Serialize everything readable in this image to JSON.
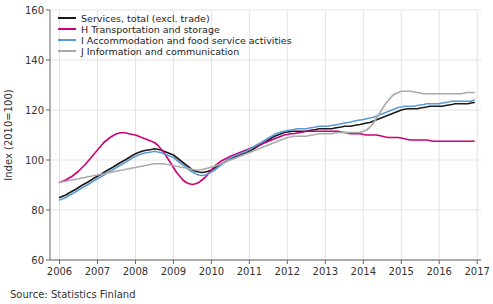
{
  "chart_data": {
    "type": "line",
    "ylabel": "Index (2010=100)",
    "source": "Source: Statistics Finland",
    "xlim": [
      2005.75,
      2017.1
    ],
    "ylim": [
      60,
      160
    ],
    "xticks": [
      2006,
      2007,
      2008,
      2009,
      2010,
      2011,
      2012,
      2013,
      2014,
      2015,
      2016,
      2017
    ],
    "yticks": [
      60,
      80,
      100,
      120,
      140,
      160
    ],
    "grid": true,
    "legend": "upper left",
    "x": [
      2006.0,
      2006.0834,
      2006.1667,
      2006.2501,
      2006.3334,
      2006.4168,
      2006.5002,
      2006.5835,
      2006.6669,
      2006.7502,
      2006.8336,
      2006.9169,
      2007.0003,
      2007.0837,
      2007.167,
      2007.2504,
      2007.3337,
      2007.4171,
      2007.5005,
      2007.5838,
      2007.6672,
      2007.7505,
      2007.8339,
      2007.9173,
      2008.0006,
      2008.084,
      2008.1673,
      2008.2507,
      2008.334,
      2008.4174,
      2008.5008,
      2008.5841,
      2008.6675,
      2008.7508,
      2008.8342,
      2008.9176,
      2009.0009,
      2009.0843,
      2009.1676,
      2009.251,
      2009.3344,
      2009.4177,
      2009.5011,
      2009.5844,
      2009.6678,
      2009.7511,
      2009.8345,
      2009.9179,
      2010.0012,
      2010.0846,
      2010.1679,
      2010.2513,
      2010.3347,
      2010.418,
      2010.5014,
      2010.5847,
      2010.6681,
      2010.7515,
      2010.8348,
      2010.9182,
      2011.0015,
      2011.0849,
      2011.1682,
      2011.2516,
      2011.335,
      2011.4183,
      2011.5017,
      2011.585,
      2011.6684,
      2011.7518,
      2011.8351,
      2011.9185,
      2012.0018,
      2012.0852,
      2012.1685,
      2012.2519,
      2012.3353,
      2012.4186,
      2012.502,
      2012.5853,
      2012.6687,
      2012.7521,
      2012.8354,
      2012.9188,
      2013.0021,
      2013.0855,
      2013.1689,
      2013.2522,
      2013.3356,
      2013.4189,
      2013.5023,
      2013.5856,
      2013.669,
      2013.7524,
      2013.8357,
      2013.9191,
      2014.0024,
      2014.0858,
      2014.1692,
      2014.2525,
      2014.3359,
      2014.4192,
      2014.5026,
      2014.586,
      2014.6693,
      2014.7527,
      2014.836,
      2014.9194,
      2015.0027,
      2015.0861,
      2015.1695,
      2015.2528,
      2015.3362,
      2015.4195,
      2015.5029,
      2015.5863,
      2015.6696,
      2015.753,
      2015.8363,
      2015.9197,
      2016.0031,
      2016.0864,
      2016.1698,
      2016.2531,
      2016.3365,
      2016.4198,
      2016.5032,
      2016.5866,
      2016.6699,
      2016.7533,
      2016.8366,
      2016.92
    ],
    "series": [
      {
        "name": "Services, total (excl. trade)",
        "color": "#1a1a1a",
        "values": [
          85.0,
          85.5,
          86.0,
          86.8,
          87.5,
          88.2,
          89.0,
          89.8,
          90.5,
          91.2,
          92.0,
          92.8,
          93.5,
          94.2,
          95.0,
          95.8,
          96.5,
          97.2,
          98.0,
          98.8,
          99.5,
          100.2,
          101.0,
          101.8,
          102.5,
          103.0,
          103.5,
          103.8,
          104.0,
          104.2,
          104.5,
          104.3,
          104.0,
          103.5,
          103.0,
          102.5,
          102.0,
          101.0,
          100.0,
          99.0,
          98.0,
          97.0,
          96.0,
          95.5,
          95.2,
          95.0,
          95.2,
          95.5,
          96.0,
          96.8,
          97.5,
          98.2,
          99.0,
          99.8,
          100.5,
          101.0,
          101.5,
          102.0,
          102.5,
          103.0,
          103.5,
          104.2,
          105.0,
          105.8,
          106.5,
          107.2,
          108.0,
          108.8,
          109.5,
          110.0,
          110.5,
          111.0,
          111.2,
          111.4,
          111.5,
          111.5,
          111.5,
          111.5,
          111.5,
          111.8,
          112.0,
          112.2,
          112.5,
          112.5,
          112.5,
          112.5,
          112.5,
          112.8,
          113.0,
          113.2,
          113.5,
          113.5,
          113.5,
          113.8,
          114.0,
          114.2,
          114.5,
          114.8,
          115.0,
          115.5,
          116.0,
          116.5,
          117.0,
          117.5,
          118.0,
          118.5,
          119.0,
          119.5,
          120.0,
          120.3,
          120.5,
          120.5,
          120.5,
          120.5,
          120.8,
          121.0,
          121.2,
          121.5,
          121.5,
          121.5,
          121.5,
          121.5,
          121.8,
          122.0,
          122.2,
          122.5,
          122.5,
          122.5,
          122.5,
          122.5,
          122.8,
          123.0
        ]
      },
      {
        "name": "H Transportation and storage",
        "color": "#cc007a",
        "values": [
          91.0,
          91.5,
          92.0,
          92.8,
          93.5,
          94.5,
          95.5,
          96.8,
          98.0,
          99.5,
          101.0,
          102.5,
          104.0,
          105.5,
          107.0,
          108.0,
          109.0,
          109.8,
          110.5,
          110.8,
          111.0,
          110.8,
          110.5,
          110.2,
          110.0,
          109.5,
          109.0,
          108.5,
          108.0,
          107.5,
          107.0,
          106.0,
          104.5,
          103.0,
          101.0,
          99.0,
          97.0,
          95.0,
          93.5,
          92.0,
          91.0,
          90.5,
          90.2,
          90.5,
          91.0,
          92.0,
          93.0,
          94.5,
          96.0,
          97.5,
          98.5,
          99.5,
          100.2,
          100.8,
          101.5,
          102.0,
          102.5,
          103.0,
          103.5,
          104.0,
          104.5,
          105.0,
          105.5,
          106.0,
          106.5,
          107.0,
          107.5,
          108.0,
          108.5,
          109.0,
          109.5,
          110.0,
          110.2,
          110.5,
          110.5,
          110.8,
          111.0,
          111.2,
          111.5,
          111.5,
          111.5,
          111.5,
          111.5,
          111.5,
          111.5,
          111.5,
          111.5,
          111.5,
          111.5,
          111.2,
          111.0,
          110.8,
          110.5,
          110.5,
          110.5,
          110.5,
          110.2,
          110.0,
          110.0,
          110.0,
          110.0,
          109.8,
          109.5,
          109.2,
          109.0,
          109.0,
          109.0,
          109.0,
          108.8,
          108.5,
          108.2,
          108.0,
          108.0,
          108.0,
          108.0,
          108.0,
          108.0,
          107.8,
          107.5,
          107.5,
          107.5,
          107.5,
          107.5,
          107.5,
          107.5,
          107.5,
          107.5,
          107.5,
          107.5,
          107.5,
          107.5,
          107.5
        ]
      },
      {
        "name": "I Accommodation and food service activities",
        "color": "#5b9bd5",
        "values": [
          84.0,
          84.5,
          85.0,
          85.8,
          86.5,
          87.2,
          88.0,
          88.8,
          89.5,
          90.2,
          91.0,
          91.8,
          92.5,
          93.2,
          94.0,
          94.8,
          95.5,
          96.2,
          97.0,
          97.8,
          98.5,
          99.2,
          100.0,
          100.8,
          101.5,
          102.0,
          102.5,
          102.8,
          103.0,
          103.2,
          103.5,
          103.2,
          103.0,
          102.5,
          102.0,
          101.5,
          101.0,
          100.0,
          99.0,
          98.0,
          97.0,
          96.0,
          95.2,
          94.5,
          94.0,
          93.8,
          94.0,
          94.5,
          95.2,
          96.0,
          97.0,
          98.0,
          99.0,
          100.0,
          100.8,
          101.5,
          102.0,
          102.5,
          103.0,
          103.5,
          104.2,
          105.0,
          105.8,
          106.5,
          107.2,
          108.0,
          108.8,
          109.5,
          110.2,
          110.8,
          111.2,
          111.5,
          111.8,
          112.0,
          112.2,
          112.5,
          112.5,
          112.5,
          112.5,
          112.8,
          113.0,
          113.2,
          113.5,
          113.5,
          113.5,
          113.5,
          113.8,
          114.0,
          114.2,
          114.5,
          114.8,
          115.0,
          115.2,
          115.5,
          115.8,
          116.0,
          116.2,
          116.5,
          116.8,
          117.0,
          117.5,
          118.0,
          118.5,
          119.0,
          119.5,
          120.0,
          120.5,
          121.0,
          121.2,
          121.5,
          121.5,
          121.5,
          121.5,
          121.8,
          122.0,
          122.2,
          122.5,
          122.5,
          122.5,
          122.5,
          122.5,
          122.8,
          123.0,
          123.2,
          123.5,
          123.5,
          123.5,
          123.5,
          123.5,
          123.5,
          123.5,
          124.0
        ]
      },
      {
        "name": "J Information and communication",
        "color": "#aaaaaa",
        "values": [
          91.0,
          91.3,
          91.5,
          91.8,
          92.0,
          92.3,
          92.5,
          92.8,
          93.0,
          93.3,
          93.5,
          93.8,
          94.0,
          94.3,
          94.5,
          94.8,
          95.0,
          95.3,
          95.5,
          95.8,
          96.0,
          96.3,
          96.5,
          96.8,
          97.0,
          97.3,
          97.5,
          97.8,
          98.0,
          98.3,
          98.5,
          98.5,
          98.5,
          98.5,
          98.2,
          98.0,
          97.8,
          97.5,
          97.2,
          97.0,
          96.8,
          96.5,
          96.2,
          96.0,
          96.0,
          96.2,
          96.5,
          96.8,
          97.2,
          97.5,
          98.0,
          98.5,
          99.0,
          99.5,
          100.0,
          100.5,
          101.0,
          101.5,
          102.0,
          102.5,
          103.0,
          103.5,
          104.0,
          104.5,
          105.0,
          105.5,
          106.0,
          106.5,
          107.0,
          107.5,
          108.0,
          108.5,
          109.0,
          109.2,
          109.5,
          109.5,
          109.5,
          109.5,
          109.5,
          109.8,
          110.0,
          110.2,
          110.5,
          110.5,
          110.5,
          110.5,
          110.5,
          110.8,
          111.0,
          111.0,
          111.0,
          111.0,
          111.0,
          111.0,
          111.0,
          111.0,
          111.5,
          112.0,
          113.0,
          114.5,
          116.5,
          118.5,
          120.5,
          122.5,
          124.0,
          125.5,
          126.5,
          127.0,
          127.5,
          127.5,
          127.5,
          127.5,
          127.2,
          127.0,
          126.8,
          126.5,
          126.5,
          126.5,
          126.5,
          126.5,
          126.5,
          126.5,
          126.5,
          126.5,
          126.5,
          126.5,
          126.5,
          126.5,
          126.8,
          127.0,
          127.0,
          127.0
        ]
      }
    ]
  }
}
